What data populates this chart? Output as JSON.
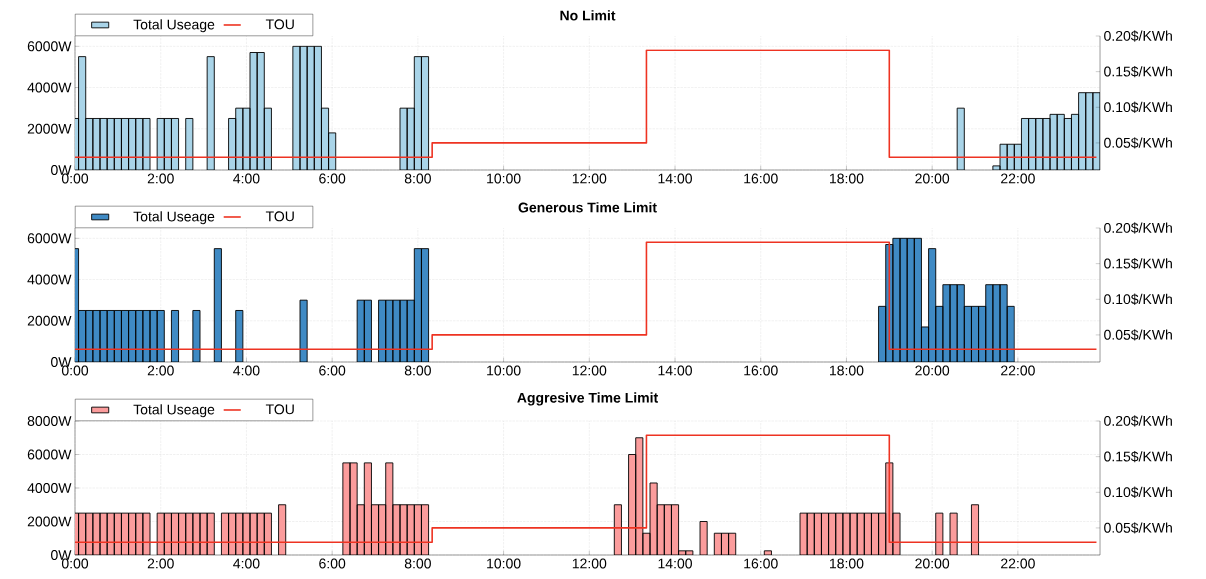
{
  "chart_data": [
    {
      "type": "bar",
      "title": "No Limit",
      "legend": "top left",
      "grid": true,
      "xlim": [
        0,
        1435
      ],
      "ylim": [
        0,
        6500
      ],
      "y2lim": [
        0.012,
        0.2
      ],
      "xticks": [
        {
          "value": 0,
          "label": "0:00"
        },
        {
          "value": 120,
          "label": "2:00"
        },
        {
          "value": 240,
          "label": "4:00"
        },
        {
          "value": 360,
          "label": "6:00"
        },
        {
          "value": 480,
          "label": "8:00"
        },
        {
          "value": 600,
          "label": "10:00"
        },
        {
          "value": 720,
          "label": "12:00"
        },
        {
          "value": 840,
          "label": "14:00"
        },
        {
          "value": 960,
          "label": "16:00"
        },
        {
          "value": 1080,
          "label": "18:00"
        },
        {
          "value": 1200,
          "label": "20:00"
        },
        {
          "value": 1320,
          "label": "22:00"
        }
      ],
      "yticks": [
        {
          "value": 0,
          "label": "0W"
        },
        {
          "value": 2000,
          "label": "2000W"
        },
        {
          "value": 4000,
          "label": "4000W"
        },
        {
          "value": 6000,
          "label": "6000W"
        }
      ],
      "y2ticks": [
        {
          "value": 0.05,
          "label": "0.05$/KWh"
        },
        {
          "value": 0.1,
          "label": "0.10$/KWh"
        },
        {
          "value": 0.15,
          "label": "0.15$/KWh"
        },
        {
          "value": 0.2,
          "label": "0.20$/KWh"
        }
      ],
      "series": [
        {
          "name": "Total Useage",
          "color": "#a9d4e8",
          "x": [
            0,
            10,
            20,
            30,
            40,
            50,
            60,
            70,
            80,
            90,
            100,
            120,
            130,
            140,
            160,
            190,
            220,
            230,
            240,
            250,
            260,
            270,
            310,
            320,
            330,
            340,
            350,
            360,
            460,
            470,
            480,
            490,
            1240,
            1290,
            1300,
            1310,
            1320,
            1330,
            1340,
            1350,
            1360,
            1370,
            1380,
            1390,
            1400,
            1410,
            1420,
            1430
          ],
          "values": [
            2500,
            5500,
            2500,
            2500,
            2500,
            2500,
            2500,
            2500,
            2500,
            2500,
            2500,
            2500,
            2500,
            2500,
            2500,
            5500,
            2500,
            3000,
            3000,
            5700,
            5700,
            3000,
            6000,
            6000,
            6000,
            6000,
            3000,
            1800,
            3000,
            3000,
            5500,
            5500,
            3000,
            200,
            1250,
            1250,
            1250,
            2500,
            2500,
            2500,
            2500,
            2700,
            2700,
            2500,
            2700,
            3750,
            3750,
            3750
          ]
        },
        {
          "name": "TOU",
          "type": "step",
          "axis": "y2",
          "color": "#ee3322",
          "x": [
            0,
            500,
            800,
            1140,
            1430
          ],
          "values": [
            0.03,
            0.05,
            0.18,
            0.03,
            0.03
          ]
        }
      ]
    },
    {
      "type": "bar",
      "title": "Generous Time Limit",
      "legend": "top left",
      "grid": true,
      "xlim": [
        0,
        1435
      ],
      "ylim": [
        0,
        6500
      ],
      "y2lim": [
        0.012,
        0.2
      ],
      "xticks": [
        {
          "value": 0,
          "label": "0:00"
        },
        {
          "value": 120,
          "label": "2:00"
        },
        {
          "value": 240,
          "label": "4:00"
        },
        {
          "value": 360,
          "label": "6:00"
        },
        {
          "value": 480,
          "label": "8:00"
        },
        {
          "value": 600,
          "label": "10:00"
        },
        {
          "value": 720,
          "label": "12:00"
        },
        {
          "value": 840,
          "label": "14:00"
        },
        {
          "value": 960,
          "label": "16:00"
        },
        {
          "value": 1080,
          "label": "18:00"
        },
        {
          "value": 1200,
          "label": "20:00"
        },
        {
          "value": 1320,
          "label": "22:00"
        }
      ],
      "yticks": [
        {
          "value": 0,
          "label": "0W"
        },
        {
          "value": 2000,
          "label": "2000W"
        },
        {
          "value": 4000,
          "label": "4000W"
        },
        {
          "value": 6000,
          "label": "6000W"
        }
      ],
      "y2ticks": [
        {
          "value": 0.05,
          "label": "0.05$/KWh"
        },
        {
          "value": 0.1,
          "label": "0.10$/KWh"
        },
        {
          "value": 0.15,
          "label": "0.15$/KWh"
        },
        {
          "value": 0.2,
          "label": "0.20$/KWh"
        }
      ],
      "series": [
        {
          "name": "Total Useage",
          "color": "#3f8ac4",
          "x": [
            0,
            10,
            20,
            30,
            40,
            50,
            60,
            70,
            80,
            90,
            100,
            110,
            120,
            140,
            170,
            200,
            230,
            320,
            400,
            410,
            430,
            440,
            450,
            460,
            470,
            480,
            490,
            1130,
            1140,
            1150,
            1160,
            1170,
            1180,
            1190,
            1200,
            1210,
            1220,
            1230,
            1240,
            1250,
            1260,
            1270,
            1280,
            1290,
            1300,
            1310
          ],
          "values": [
            5500,
            2500,
            2500,
            2500,
            2500,
            2500,
            2500,
            2500,
            2500,
            2500,
            2500,
            2500,
            2500,
            2500,
            2500,
            5500,
            2500,
            3000,
            3000,
            3000,
            3000,
            3000,
            3000,
            3000,
            3000,
            5500,
            5500,
            2700,
            5700,
            6000,
            6000,
            6000,
            6000,
            1700,
            5500,
            2700,
            3750,
            3750,
            3750,
            2700,
            2700,
            2700,
            3750,
            3750,
            3750,
            2700
          ]
        },
        {
          "name": "TOU",
          "type": "step",
          "axis": "y2",
          "color": "#ee3322",
          "x": [
            0,
            500,
            800,
            1140,
            1430
          ],
          "values": [
            0.03,
            0.05,
            0.18,
            0.03,
            0.03
          ]
        }
      ]
    },
    {
      "type": "bar",
      "title": "Aggresive Time Limit",
      "legend": "top left",
      "grid": true,
      "xlim": [
        0,
        1435
      ],
      "ylim": [
        0,
        8000
      ],
      "y2lim": [
        0.012,
        0.2
      ],
      "xticks": [
        {
          "value": 0,
          "label": "0:00"
        },
        {
          "value": 120,
          "label": "2:00"
        },
        {
          "value": 240,
          "label": "4:00"
        },
        {
          "value": 360,
          "label": "6:00"
        },
        {
          "value": 480,
          "label": "8:00"
        },
        {
          "value": 600,
          "label": "10:00"
        },
        {
          "value": 720,
          "label": "12:00"
        },
        {
          "value": 840,
          "label": "14:00"
        },
        {
          "value": 960,
          "label": "16:00"
        },
        {
          "value": 1080,
          "label": "18:00"
        },
        {
          "value": 1200,
          "label": "20:00"
        },
        {
          "value": 1320,
          "label": "22:00"
        }
      ],
      "yticks": [
        {
          "value": 0,
          "label": "0W"
        },
        {
          "value": 2000,
          "label": "2000W"
        },
        {
          "value": 4000,
          "label": "4000W"
        },
        {
          "value": 6000,
          "label": "6000W"
        },
        {
          "value": 8000,
          "label": "8000W"
        }
      ],
      "y2ticks": [
        {
          "value": 0.05,
          "label": "0.05$/KWh"
        },
        {
          "value": 0.1,
          "label": "0.10$/KWh"
        },
        {
          "value": 0.15,
          "label": "0.15$/KWh"
        },
        {
          "value": 0.2,
          "label": "0.20$/KWh"
        }
      ],
      "series": [
        {
          "name": "Total Useage",
          "color": "#fb9c9c",
          "x": [
            0,
            10,
            20,
            30,
            40,
            50,
            60,
            70,
            80,
            90,
            100,
            120,
            130,
            140,
            150,
            160,
            170,
            180,
            190,
            210,
            220,
            230,
            240,
            250,
            260,
            270,
            290,
            380,
            390,
            400,
            410,
            420,
            430,
            440,
            450,
            460,
            470,
            480,
            490,
            760,
            780,
            790,
            800,
            810,
            820,
            830,
            840,
            850,
            860,
            880,
            900,
            910,
            920,
            970,
            1020,
            1030,
            1040,
            1050,
            1060,
            1070,
            1080,
            1090,
            1100,
            1110,
            1120,
            1130,
            1140,
            1150,
            1210,
            1230,
            1260
          ],
          "values": [
            2500,
            2500,
            2500,
            2500,
            2500,
            2500,
            2500,
            2500,
            2500,
            2500,
            2500,
            2500,
            2500,
            2500,
            2500,
            2500,
            2500,
            2500,
            2500,
            2500,
            2500,
            2500,
            2500,
            2500,
            2500,
            2500,
            3000,
            5500,
            5500,
            3000,
            5500,
            3000,
            3000,
            5500,
            3000,
            3000,
            3000,
            3000,
            3000,
            3000,
            6000,
            7000,
            1300,
            4300,
            3000,
            3000,
            3000,
            250,
            250,
            2000,
            1300,
            1300,
            1300,
            250,
            2500,
            2500,
            2500,
            2500,
            2500,
            2500,
            2500,
            2500,
            2500,
            2500,
            2500,
            2500,
            5500,
            2500,
            2500,
            2500,
            3000
          ]
        },
        {
          "name": "TOU",
          "type": "step",
          "axis": "y2",
          "color": "#ee3322",
          "x": [
            0,
            500,
            800,
            1140,
            1430
          ],
          "values": [
            0.03,
            0.05,
            0.18,
            0.03,
            0.03
          ]
        }
      ]
    }
  ]
}
